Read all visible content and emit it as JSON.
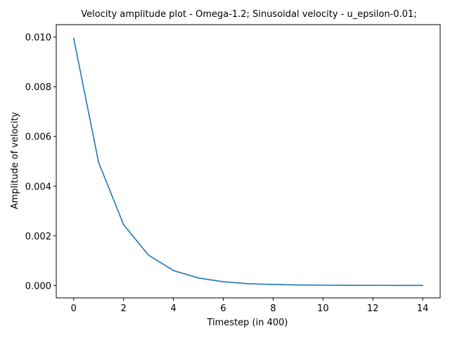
{
  "chart_data": {
    "type": "line",
    "title": "Velocity amplitude plot - Omega-1.2; Sinusoidal velocity - u_epsilon-0.01;",
    "xlabel": "Timestep (in 400)",
    "ylabel": "Amplitude of velocity",
    "xlim": [
      -0.7,
      14.7
    ],
    "ylim": [
      -0.0005,
      0.0105
    ],
    "x_ticks": [
      0,
      2,
      4,
      6,
      8,
      10,
      12,
      14
    ],
    "x_tick_labels": [
      "0",
      "2",
      "4",
      "6",
      "8",
      "10",
      "12",
      "14"
    ],
    "y_ticks": [
      0.0,
      0.002,
      0.004,
      0.006,
      0.008,
      0.01
    ],
    "y_tick_labels": [
      "0.000",
      "0.002",
      "0.004",
      "0.006",
      "0.008",
      "0.010"
    ],
    "grid": false,
    "series": [
      {
        "color": "#1f77b4",
        "x": [
          0,
          1,
          2,
          3,
          4,
          5,
          6,
          7,
          8,
          9,
          10,
          11,
          12,
          13,
          14
        ],
        "values": [
          0.00995,
          0.00495,
          0.00245,
          0.00122,
          0.0006,
          0.0003,
          0.00015,
          7e-05,
          4e-05,
          2e-05,
          1e-05,
          5e-06,
          3e-06,
          2e-06,
          1e-06
        ]
      }
    ]
  }
}
